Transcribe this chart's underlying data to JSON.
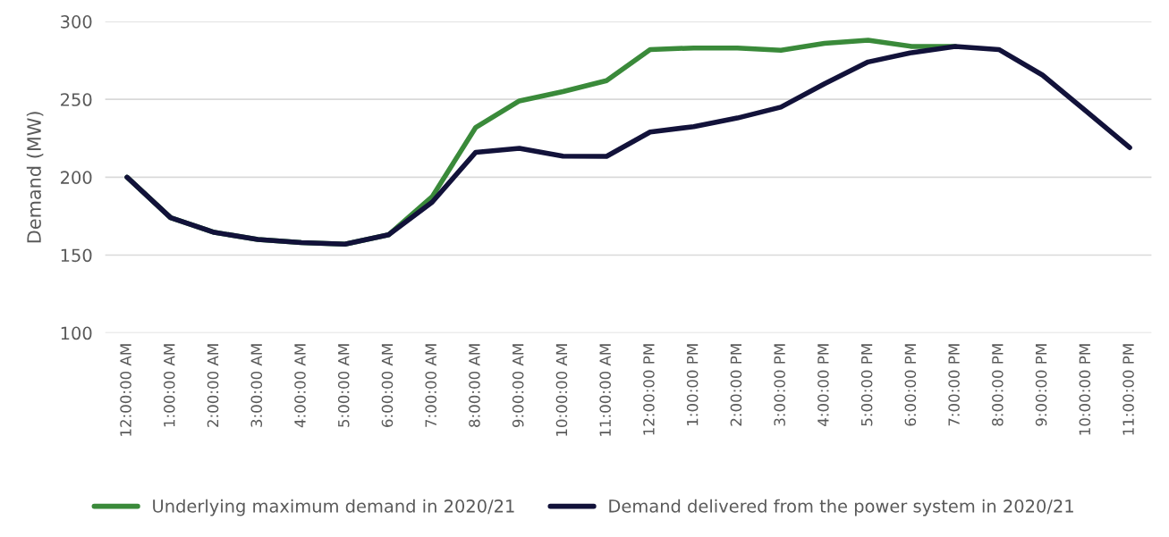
{
  "chart_data": {
    "type": "line",
    "ylabel": "Demand (MW)",
    "categories": [
      "12:00:00 AM",
      "1:00:00 AM",
      "2:00:00 AM",
      "3:00:00 AM",
      "4:00:00 AM",
      "5:00:00 AM",
      "6:00:00 AM",
      "7:00:00 AM",
      "8:00:00 AM",
      "9:00:00 AM",
      "10:00:00 AM",
      "11:00:00 AM",
      "12:00:00 PM",
      "1:00:00 PM",
      "2:00:00 PM",
      "3:00:00 PM",
      "4:00:00 PM",
      "5:00:00 PM",
      "6:00:00 PM",
      "7:00:00 PM",
      "8:00:00 PM",
      "9:00:00 PM",
      "10:00:00 PM",
      "11:00:00 PM"
    ],
    "series": [
      {
        "name": "Underlying maximum demand in 2020/21",
        "color": "#3a8a3a",
        "values": [
          200,
          174,
          164.6,
          160,
          158,
          157,
          163,
          187.5,
          232,
          249,
          255,
          262,
          282,
          283,
          283,
          281.5,
          286,
          288,
          284,
          284,
          null,
          null,
          null,
          null
        ]
      },
      {
        "name": "Demand delivered from the power system in 2020/21",
        "color": "#12123a",
        "values": [
          200,
          174,
          164.6,
          160,
          158,
          157,
          163,
          184,
          216,
          218.5,
          213.5,
          213.4,
          229,
          232.5,
          238,
          245,
          260,
          274,
          280,
          284,
          282,
          265.6,
          242.4,
          219
        ]
      }
    ],
    "ylim": [
      100,
      300
    ],
    "yticks": [
      100,
      150,
      200,
      250,
      300
    ],
    "grid": "y",
    "legend": "bottom",
    "marker": "none",
    "line_style": "solid"
  }
}
